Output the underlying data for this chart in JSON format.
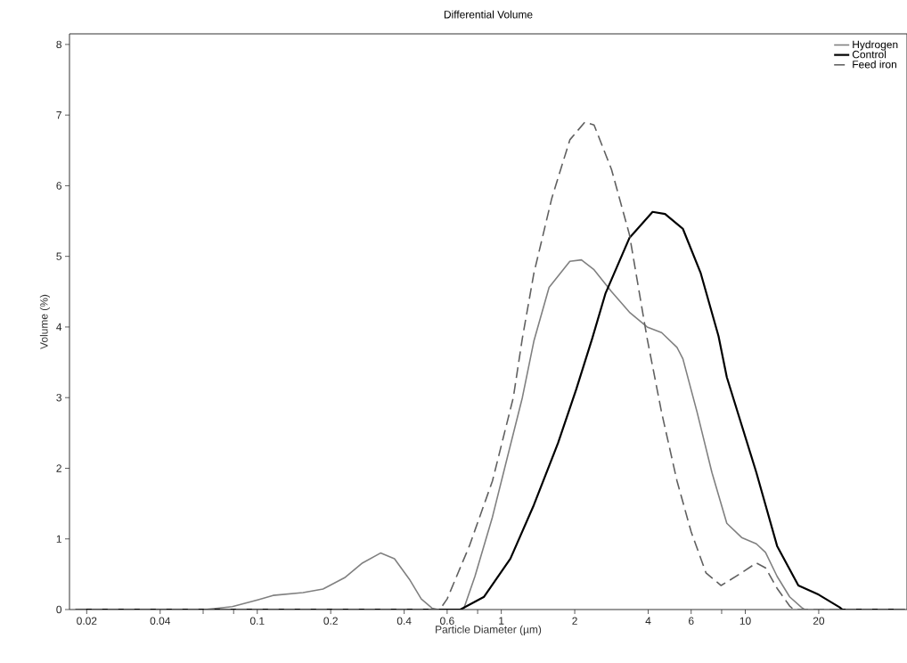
{
  "chart_data": {
    "type": "line",
    "title": "Differential Volume",
    "xlabel": "Particle Diameter (µm)",
    "ylabel": "Volume (%)",
    "log": "x",
    "legend": "top right",
    "grid": false,
    "marker": "none",
    "xlim": [
      0.017,
      46
    ],
    "ylim": [
      0,
      8.15
    ],
    "xticks": [
      0.02,
      0.04,
      {
        "value": 0.06,
        "label": null
      },
      {
        "value": 0.08,
        "label": null
      },
      0.1,
      0.2,
      0.4,
      0.6,
      {
        "value": 0.8,
        "label": null
      },
      1,
      2,
      4,
      6,
      {
        "value": 8,
        "label": null
      },
      10,
      20
    ],
    "yticks": [
      0,
      1,
      2,
      3,
      4,
      5,
      6,
      7,
      8
    ],
    "series": [
      {
        "name": "Hydrogen",
        "color": "#808080",
        "line_style": "solid",
        "x": [
          0.018,
          0.061,
          0.079,
          0.101,
          0.116,
          0.154,
          0.186,
          0.228,
          0.27,
          0.32,
          0.365,
          0.42,
          0.47,
          0.52,
          0.55,
          0.68,
          0.7,
          0.78,
          0.92,
          1.06,
          1.22,
          1.36,
          1.57,
          1.91,
          2.13,
          2.4,
          2.83,
          3.35,
          3.96,
          4.54,
          5.25,
          5.55,
          6.35,
          7.3,
          8.4,
          9.66,
          11.1,
          12.1,
          13.5,
          15.2,
          17.0,
          17.5,
          45
        ],
        "values": [
          0,
          0,
          0.04,
          0.14,
          0.2,
          0.24,
          0.29,
          0.45,
          0.66,
          0.8,
          0.72,
          0.43,
          0.15,
          0.02,
          0,
          0,
          0,
          0.47,
          1.31,
          2.16,
          3.0,
          3.8,
          4.56,
          4.93,
          4.95,
          4.81,
          4.5,
          4.21,
          4.0,
          3.92,
          3.71,
          3.55,
          2.79,
          1.94,
          1.22,
          1.02,
          0.93,
          0.81,
          0.47,
          0.18,
          0.03,
          0,
          0
        ]
      },
      {
        "name": "Control",
        "color": "#000000",
        "line_style": "solid",
        "x": [
          0.018,
          0.68,
          0.85,
          1.09,
          1.36,
          1.71,
          2.03,
          2.36,
          2.67,
          3.35,
          4.17,
          4.69,
          5.55,
          6.57,
          7.77,
          8.4,
          11.1,
          13.5,
          16.5,
          20,
          24.4,
          25,
          45
        ],
        "values": [
          0,
          0,
          0.18,
          0.72,
          1.48,
          2.36,
          3.12,
          3.84,
          4.47,
          5.26,
          5.63,
          5.6,
          5.39,
          4.76,
          3.87,
          3.29,
          1.94,
          0.9,
          0.34,
          0.21,
          0.03,
          0,
          0
        ]
      },
      {
        "name": "Feed iron",
        "color": "#606060",
        "line_style": "dashed",
        "x": [
          0.018,
          0.56,
          0.6,
          0.74,
          0.92,
          1.12,
          1.22,
          1.36,
          1.61,
          1.91,
          2.2,
          2.4,
          2.83,
          3.35,
          3.74,
          3.96,
          4.54,
          5.25,
          6.0,
          6.9,
          7.96,
          9.66,
          11.1,
          12.1,
          13.5,
          15.2,
          15.8,
          45
        ],
        "values": [
          0,
          0,
          0.15,
          0.9,
          1.82,
          3.0,
          3.84,
          4.76,
          5.82,
          6.65,
          6.9,
          6.86,
          6.23,
          5.31,
          4.34,
          3.84,
          2.79,
          1.82,
          1.1,
          0.52,
          0.34,
          0.52,
          0.66,
          0.59,
          0.3,
          0.05,
          0,
          0
        ]
      }
    ]
  }
}
